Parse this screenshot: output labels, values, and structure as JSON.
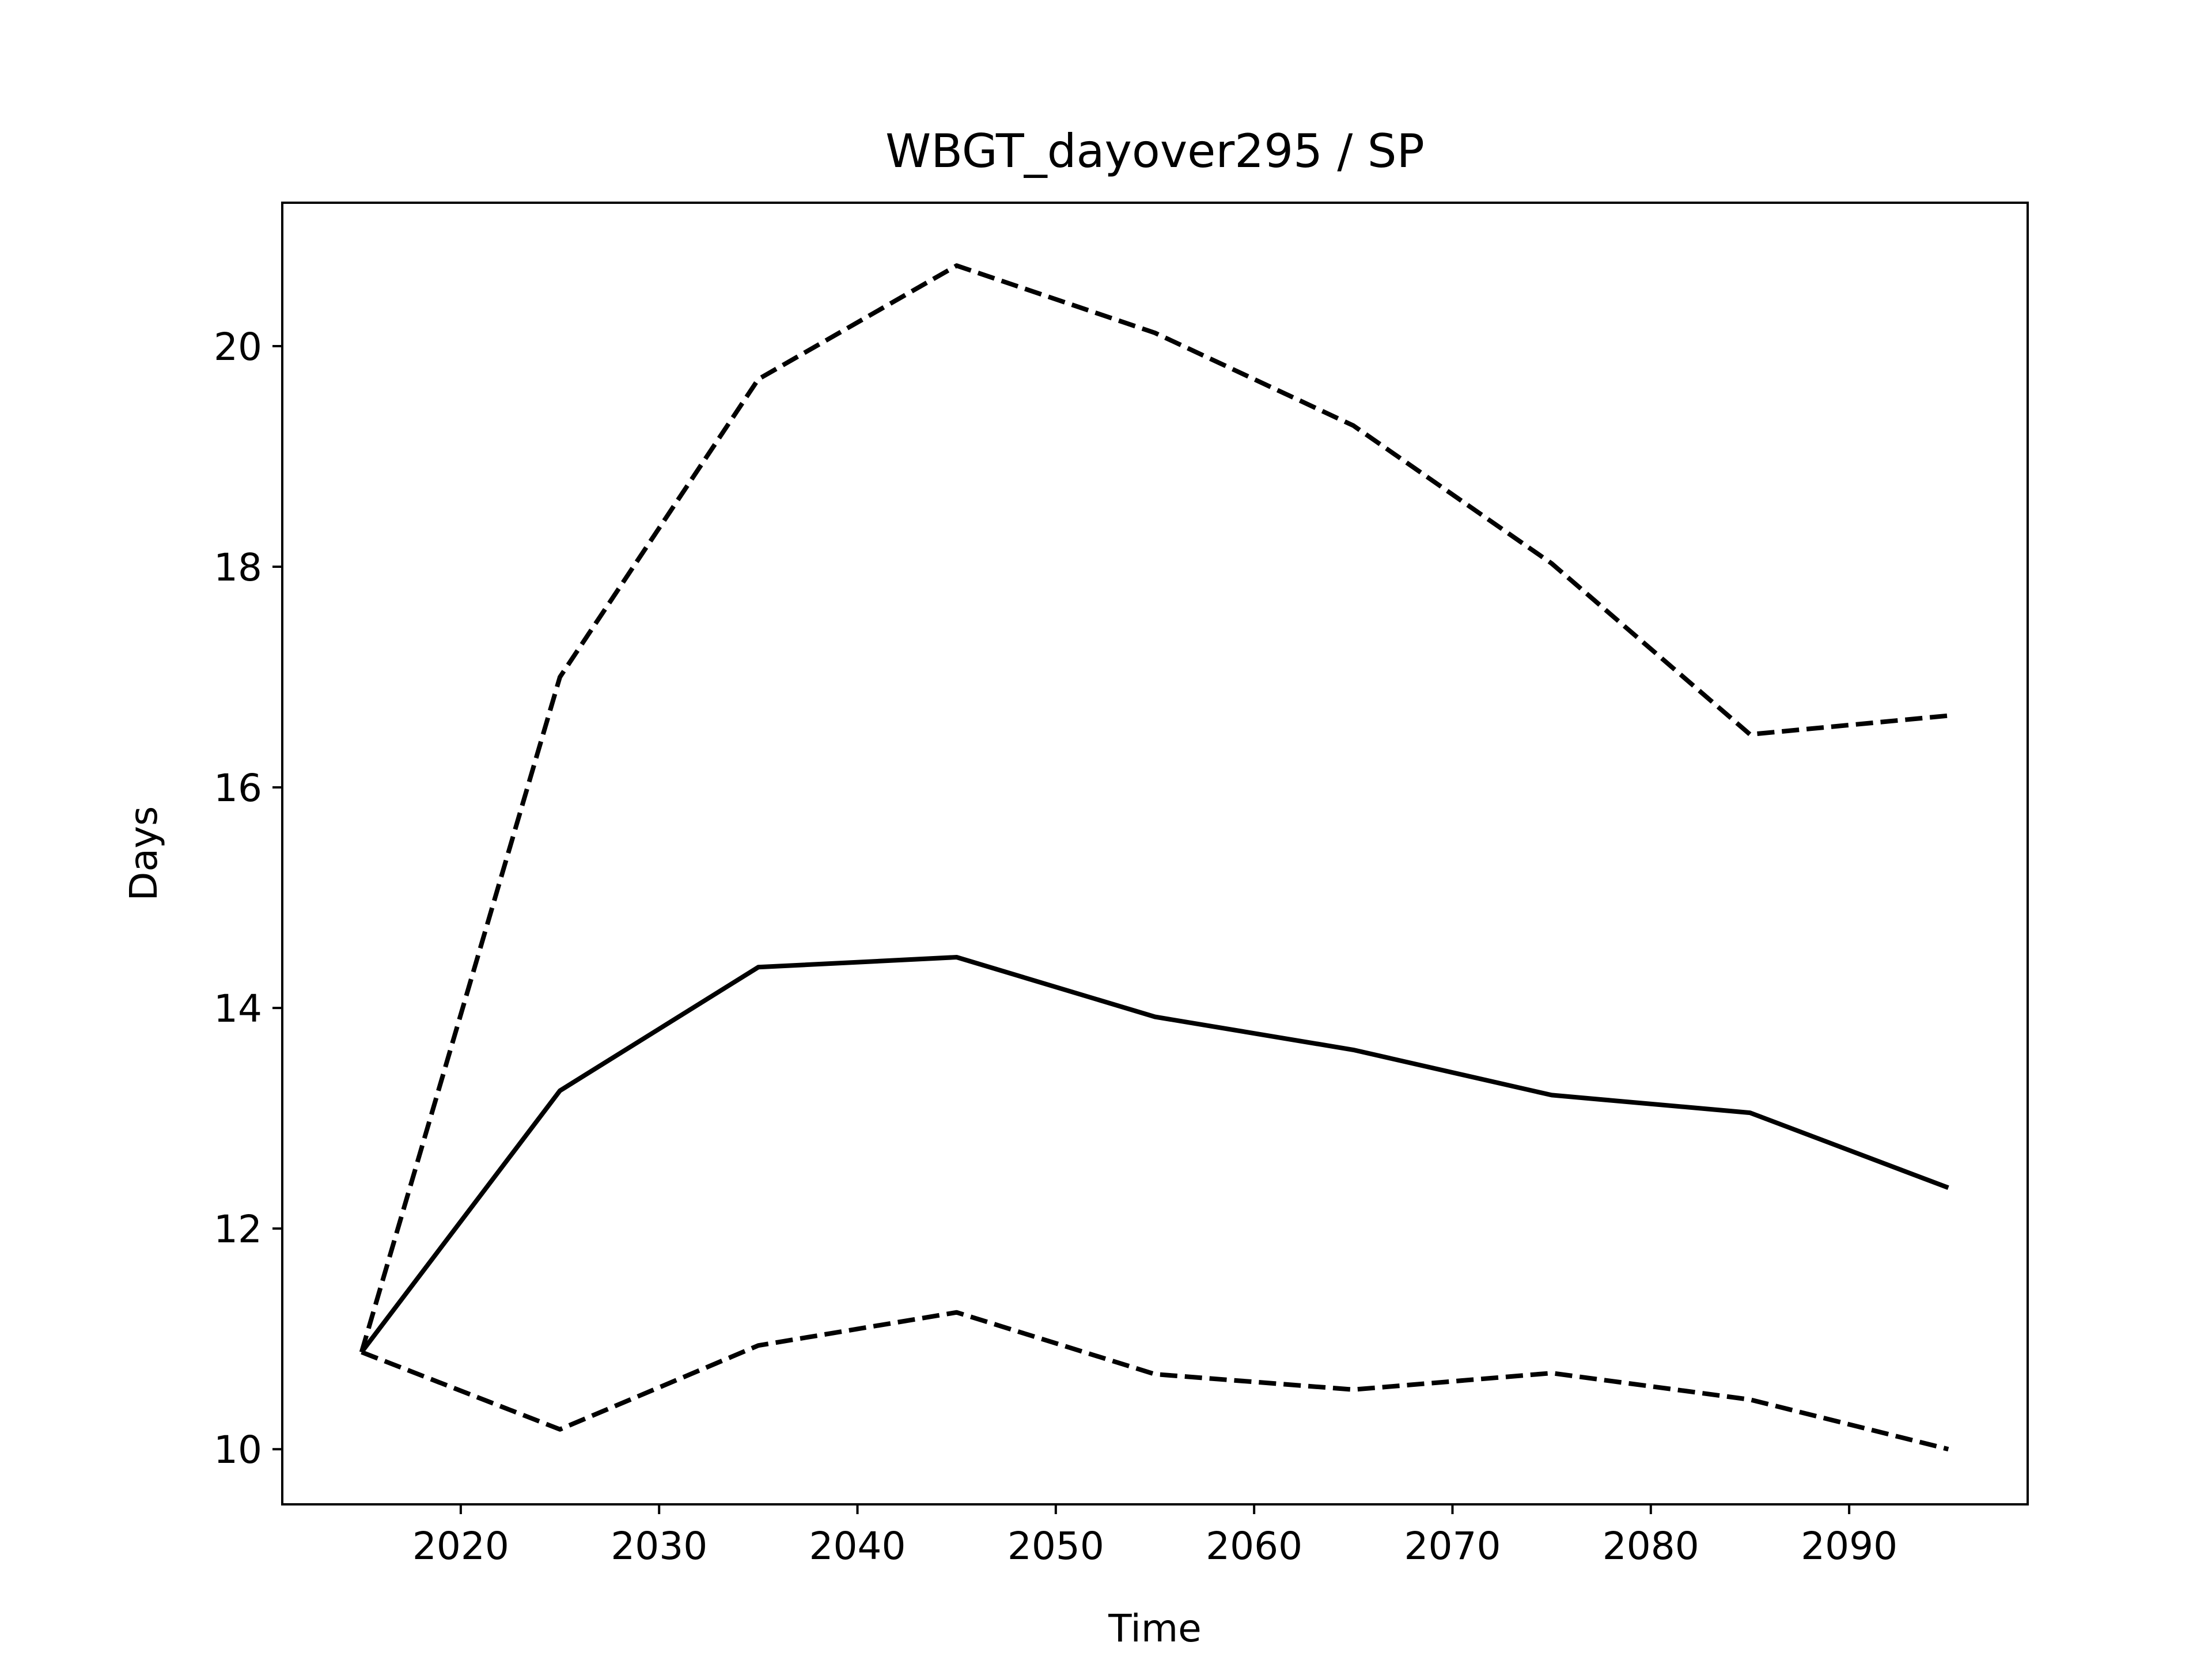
{
  "chart_data": {
    "type": "line",
    "title": "WBGT_dayover295 / SP",
    "xlabel": "Time",
    "ylabel": "Days",
    "xlim": [
      2011,
      2099
    ],
    "ylim": [
      9.5,
      21.3
    ],
    "xticks": [
      2020,
      2030,
      2040,
      2050,
      2060,
      2070,
      2080,
      2090
    ],
    "yticks": [
      10,
      12,
      14,
      16,
      18,
      20
    ],
    "grid": false,
    "legend": "none",
    "x": [
      2015,
      2025,
      2035,
      2045,
      2055,
      2065,
      2075,
      2085,
      2095
    ],
    "series": [
      {
        "style": "solid",
        "color": "#000000",
        "values": [
          10.88,
          13.25,
          14.37,
          14.46,
          13.92,
          13.62,
          13.21,
          13.05,
          12.37
        ]
      },
      {
        "style": "dashed",
        "color": "#000000",
        "values": [
          10.88,
          17.0,
          19.7,
          20.73,
          20.12,
          19.28,
          18.03,
          16.48,
          16.65
        ]
      },
      {
        "style": "dashed",
        "color": "#000000",
        "values": [
          10.88,
          10.18,
          10.94,
          11.24,
          10.68,
          10.54,
          10.69,
          10.45,
          10.0
        ]
      }
    ]
  }
}
